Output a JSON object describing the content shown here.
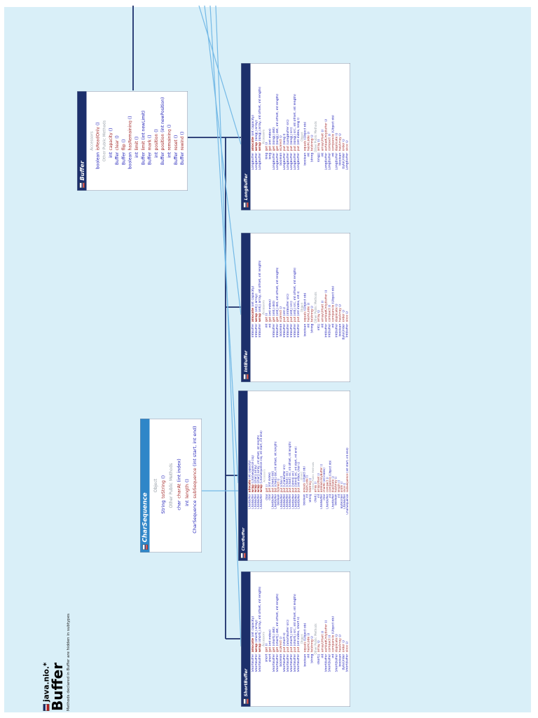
{
  "title": {
    "package": "java.nio.*",
    "name": "Buffer",
    "note": "Methods declared in Buffer are hidden in subtypes"
  },
  "colors": {
    "page_bg": "#d9eff8",
    "class_header": "#1c2f6b",
    "interface_header": "#2f86c8",
    "type_color": "#2020b8",
    "method_name_color": "#a42b2b",
    "section_label_color": "#98a0a8",
    "class_line": "#1c2f6b",
    "interface_line": "#74b9e6"
  },
  "classes": [
    {
      "id": "buffer",
      "title": "Buffer",
      "kind": "class",
      "rows": [
        {
          "t": "sec",
          "label": "Accessors"
        },
        {
          "t": "m",
          "ret": "boolean",
          "name": "isReadOnly",
          "params": "()"
        },
        {
          "t": "sec",
          "label": "Other Public Methods"
        },
        {
          "t": "m",
          "ret": "int",
          "name": "capacity",
          "params": "()"
        },
        {
          "t": "m",
          "ret": "Buffer",
          "name": "clear",
          "params": "()"
        },
        {
          "t": "m",
          "ret": "Buffer",
          "name": "flip",
          "params": "()"
        },
        {
          "t": "m",
          "ret": "boolean",
          "name": "hasRemaining",
          "params": "()"
        },
        {
          "t": "m",
          "ret": "int",
          "name": "limit",
          "params": "()"
        },
        {
          "t": "m",
          "ret": "Buffer",
          "name": "limit",
          "params": "(int newLimit)"
        },
        {
          "t": "m",
          "ret": "Buffer",
          "name": "mark",
          "params": "()"
        },
        {
          "t": "m",
          "ret": "int",
          "name": "position",
          "params": "()"
        },
        {
          "t": "m",
          "ret": "Buffer",
          "name": "position",
          "params": "(int newPosition)"
        },
        {
          "t": "m",
          "ret": "int",
          "name": "remaining",
          "params": "()"
        },
        {
          "t": "m",
          "ret": "Buffer",
          "name": "reset",
          "params": "()"
        },
        {
          "t": "m",
          "ret": "Buffer",
          "name": "rewind",
          "params": "()"
        }
      ]
    },
    {
      "id": "charsequence",
      "title": "CharSequence",
      "kind": "interface",
      "rows": [
        {
          "t": "sec",
          "label": "Object"
        },
        {
          "t": "m",
          "ret": "String",
          "name": "toString",
          "params": "()"
        },
        {
          "t": "sec",
          "label": "Other Public Methods"
        },
        {
          "t": "m",
          "ret": "char",
          "name": "charAt",
          "params": "(int index)"
        },
        {
          "t": "m",
          "ret": "int",
          "name": "length",
          "params": "()"
        },
        {
          "t": "m",
          "ret": "CharSequence",
          "name": "subSequence",
          "params": "(int start,  int end)"
        }
      ]
    },
    {
      "id": "longbuffer",
      "title": "LongBuffer",
      "kind": "class",
      "rows": [
        {
          "t": "m",
          "ret": "LongBuffer",
          "name": "allocate",
          "params": "(int capacity)",
          "b": true
        },
        {
          "t": "m",
          "ret": "LongBuffer",
          "name": "wrap",
          "params": "(long[] array)",
          "b": true
        },
        {
          "t": "m",
          "ret": "LongBuffer",
          "name": "wrap",
          "params": "(long[] array,  int offset,  int length)",
          "b": true
        },
        {
          "t": "sec",
          "label": "Accessors"
        },
        {
          "t": "m",
          "ret": "long",
          "name": "get",
          "params": "()"
        },
        {
          "t": "m",
          "ret": "long",
          "name": "get",
          "params": "(int index)"
        },
        {
          "t": "m",
          "ret": "LongBuffer",
          "name": "get",
          "params": "(long[] dst)"
        },
        {
          "t": "m",
          "ret": "LongBuffer",
          "name": "get",
          "params": "(long[] dst,  int offset,  int length)"
        },
        {
          "t": "m",
          "ret": "boolean",
          "name": "isDirect",
          "params": "()"
        },
        {
          "t": "m",
          "ret": "LongBuffer",
          "name": "put",
          "params": "(long l)"
        },
        {
          "t": "m",
          "ret": "LongBuffer",
          "name": "put",
          "params": "(LongBuffer src)"
        },
        {
          "t": "m",
          "ret": "LongBuffer",
          "name": "put",
          "params": "(long[] src)"
        },
        {
          "t": "m",
          "ret": "LongBuffer",
          "name": "put",
          "params": "(long[] src,  int offset,  int length)"
        },
        {
          "t": "m",
          "ret": "LongBuffer",
          "name": "put",
          "params": "(int index,  long l)"
        },
        {
          "t": "sec",
          "label": "Object"
        },
        {
          "t": "m",
          "ret": "boolean",
          "name": "equals",
          "params": "(Object ob)"
        },
        {
          "t": "m",
          "ret": "int",
          "name": "hashCode",
          "params": "()"
        },
        {
          "t": "m",
          "ret": "String",
          "name": "toString",
          "params": "()"
        },
        {
          "t": "sec",
          "label": "Other Public Methods"
        },
        {
          "t": "m",
          "ret": "long[]",
          "name": "array",
          "params": "()"
        },
        {
          "t": "m",
          "ret": "int",
          "name": "arrayOffset",
          "params": "()"
        },
        {
          "t": "m",
          "ret": "LongBuffer",
          "name": "asReadOnlyBuffer",
          "params": "()"
        },
        {
          "t": "m",
          "ret": "LongBuffer",
          "name": "compact",
          "params": "()"
        },
        {
          "t": "m",
          "ret": "int",
          "name": "compareTo",
          "params": "(Object ob)"
        },
        {
          "t": "m",
          "ret": "LongBuffer",
          "name": "duplicate",
          "params": "()"
        },
        {
          "t": "m",
          "ret": "boolean",
          "name": "hasArray",
          "params": "()"
        },
        {
          "t": "m",
          "ret": "ByteOrder",
          "name": "order",
          "params": "()"
        },
        {
          "t": "m",
          "ret": "LongBuffer",
          "name": "slice",
          "params": "()"
        }
      ]
    },
    {
      "id": "intbuffer",
      "title": "IntBuffer",
      "kind": "class",
      "rows": [
        {
          "t": "m",
          "ret": "IntBuffer",
          "name": "allocate",
          "params": "(int capacity)",
          "b": true
        },
        {
          "t": "m",
          "ret": "IntBuffer",
          "name": "wrap",
          "params": "(int[] array)",
          "b": true
        },
        {
          "t": "m",
          "ret": "IntBuffer",
          "name": "wrap",
          "params": "(int[] array,  int offset,  int length)",
          "b": true
        },
        {
          "t": "sec",
          "label": "Accessors"
        },
        {
          "t": "m",
          "ret": "int",
          "name": "get",
          "params": "()"
        },
        {
          "t": "m",
          "ret": "int",
          "name": "get",
          "params": "(int index)"
        },
        {
          "t": "m",
          "ret": "IntBuffer",
          "name": "get",
          "params": "(int[] dst)"
        },
        {
          "t": "m",
          "ret": "IntBuffer",
          "name": "get",
          "params": "(int[] dst,  int offset,  int length)"
        },
        {
          "t": "m",
          "ret": "boolean",
          "name": "isDirect",
          "params": "()"
        },
        {
          "t": "m",
          "ret": "IntBuffer",
          "name": "put",
          "params": "(int i)"
        },
        {
          "t": "m",
          "ret": "IntBuffer",
          "name": "put",
          "params": "(IntBuffer src)"
        },
        {
          "t": "m",
          "ret": "IntBuffer",
          "name": "put",
          "params": "(int[] src)"
        },
        {
          "t": "m",
          "ret": "IntBuffer",
          "name": "put",
          "params": "(int[] src,  int offset,  int length)"
        },
        {
          "t": "m",
          "ret": "IntBuffer",
          "name": "put",
          "params": "(int index,  int i)"
        },
        {
          "t": "sec",
          "label": "Object"
        },
        {
          "t": "m",
          "ret": "boolean",
          "name": "equals",
          "params": "(Object ob)"
        },
        {
          "t": "m",
          "ret": "int",
          "name": "hashCode",
          "params": "()"
        },
        {
          "t": "m",
          "ret": "String",
          "name": "toString",
          "params": "()"
        },
        {
          "t": "sec",
          "label": "Other Public Methods"
        },
        {
          "t": "m",
          "ret": "int[]",
          "name": "array",
          "params": "()"
        },
        {
          "t": "m",
          "ret": "int",
          "name": "arrayOffset",
          "params": "()"
        },
        {
          "t": "m",
          "ret": "IntBuffer",
          "name": "asReadOnlyBuffer",
          "params": "()"
        },
        {
          "t": "m",
          "ret": "IntBuffer",
          "name": "compact",
          "params": "()"
        },
        {
          "t": "m",
          "ret": "int",
          "name": "compareTo",
          "params": "(Object ob)"
        },
        {
          "t": "m",
          "ret": "IntBuffer",
          "name": "duplicate",
          "params": "()"
        },
        {
          "t": "m",
          "ret": "boolean",
          "name": "hasArray",
          "params": "()"
        },
        {
          "t": "m",
          "ret": "ByteOrder",
          "name": "order",
          "params": "()"
        },
        {
          "t": "m",
          "ret": "IntBuffer",
          "name": "slice",
          "params": "()"
        }
      ]
    },
    {
      "id": "charbuffer",
      "title": "CharBuffer",
      "kind": "class",
      "rows": [
        {
          "t": "m",
          "ret": "CharBuffer",
          "name": "allocate",
          "params": "(int capacity)",
          "b": true
        },
        {
          "t": "m",
          "ret": "CharBuffer",
          "name": "wrap",
          "params": "(CharSequence csq)",
          "b": true
        },
        {
          "t": "m",
          "ret": "CharBuffer",
          "name": "wrap",
          "params": "(char[] array)",
          "b": true
        },
        {
          "t": "m",
          "ret": "CharBuffer",
          "name": "wrap",
          "params": "(char[] array,  int offset,  int length)",
          "b": true
        },
        {
          "t": "m",
          "ret": "CharBuffer",
          "name": "wrap",
          "params": "(CharSequence csq,  int start,  int end)",
          "b": true
        },
        {
          "t": "sec",
          "label": "Accessors"
        },
        {
          "t": "m",
          "ret": "char",
          "name": "get",
          "params": "()"
        },
        {
          "t": "m",
          "ret": "char",
          "name": "get",
          "params": "(int index)"
        },
        {
          "t": "m",
          "ret": "CharBuffer",
          "name": "get",
          "params": "(char[] dst)"
        },
        {
          "t": "m",
          "ret": "CharBuffer",
          "name": "get",
          "params": "(char[] dst,  int offset,  int length)"
        },
        {
          "t": "m",
          "ret": "boolean",
          "name": "isDirect",
          "params": "()"
        },
        {
          "t": "m",
          "ret": "CharBuffer",
          "name": "put",
          "params": "(char c)"
        },
        {
          "t": "m",
          "ret": "CharBuffer",
          "name": "put",
          "params": "(CharBuffer src)"
        },
        {
          "t": "m",
          "ret": "CharBuffer",
          "name": "put",
          "params": "(char[] src)"
        },
        {
          "t": "m",
          "ret": "CharBuffer",
          "name": "put",
          "params": "(char[] src,  int offset,  int length)"
        },
        {
          "t": "m",
          "ret": "CharBuffer",
          "name": "put",
          "params": "(String src)"
        },
        {
          "t": "m",
          "ret": "CharBuffer",
          "name": "put",
          "params": "(String src,  int start,  int end)"
        },
        {
          "t": "m",
          "ret": "CharBuffer",
          "name": "put",
          "params": "(int index,  char c)"
        },
        {
          "t": "sec",
          "label": "Object"
        },
        {
          "t": "m",
          "ret": "boolean",
          "name": "equals",
          "params": "(Object ob)"
        },
        {
          "t": "m",
          "ret": "int",
          "name": "hashCode",
          "params": "()"
        },
        {
          "t": "m",
          "ret": "String",
          "name": "toString",
          "params": "()"
        },
        {
          "t": "sec",
          "label": "Other Public Methods"
        },
        {
          "t": "m",
          "ret": "char[]",
          "name": "array",
          "params": "()"
        },
        {
          "t": "m",
          "ret": "int",
          "name": "arrayOffset",
          "params": "()"
        },
        {
          "t": "m",
          "ret": "CharBuffer",
          "name": "asReadOnlyBuffer",
          "params": "()"
        },
        {
          "t": "m",
          "ret": "char",
          "name": "charAt",
          "params": "(int index)"
        },
        {
          "t": "m",
          "ret": "CharBuffer",
          "name": "compact",
          "params": "()"
        },
        {
          "t": "m",
          "ret": "int",
          "name": "compareTo",
          "params": "(Object ob)"
        },
        {
          "t": "m",
          "ret": "CharBuffer",
          "name": "duplicate",
          "params": "()"
        },
        {
          "t": "m",
          "ret": "boolean",
          "name": "hasArray",
          "params": "()"
        },
        {
          "t": "m",
          "ret": "int",
          "name": "length",
          "params": "()"
        },
        {
          "t": "m",
          "ret": "ByteOrder",
          "name": "order",
          "params": "()"
        },
        {
          "t": "m",
          "ret": "CharBuffer",
          "name": "slice",
          "params": "()"
        },
        {
          "t": "m",
          "ret": "CharSequence",
          "name": "subSequence",
          "params": "(int start,  int end)"
        }
      ]
    },
    {
      "id": "shortbuffer",
      "title": "ShortBuffer",
      "kind": "class",
      "rows": [
        {
          "t": "m",
          "ret": "ShortBuffer",
          "name": "allocate",
          "params": "(int capacity)",
          "b": true
        },
        {
          "t": "m",
          "ret": "ShortBuffer",
          "name": "wrap",
          "params": "(short[] array)",
          "b": true
        },
        {
          "t": "m",
          "ret": "ShortBuffer",
          "name": "wrap",
          "params": "(short[] array,  int offset,  int length)",
          "b": true
        },
        {
          "t": "sec",
          "label": "Accessors"
        },
        {
          "t": "m",
          "ret": "short",
          "name": "get",
          "params": "()"
        },
        {
          "t": "m",
          "ret": "short",
          "name": "get",
          "params": "(int index)"
        },
        {
          "t": "m",
          "ret": "ShortBuffer",
          "name": "get",
          "params": "(short[] dst)"
        },
        {
          "t": "m",
          "ret": "ShortBuffer",
          "name": "get",
          "params": "(short[] dst,  int offset,  int length)"
        },
        {
          "t": "m",
          "ret": "boolean",
          "name": "isDirect",
          "params": "()"
        },
        {
          "t": "m",
          "ret": "ShortBuffer",
          "name": "put",
          "params": "(short s)"
        },
        {
          "t": "m",
          "ret": "ShortBuffer",
          "name": "put",
          "params": "(ShortBuffer src)"
        },
        {
          "t": "m",
          "ret": "ShortBuffer",
          "name": "put",
          "params": "(short[] src)"
        },
        {
          "t": "m",
          "ret": "ShortBuffer",
          "name": "put",
          "params": "(short[] src,  int offset,  int length)"
        },
        {
          "t": "m",
          "ret": "ShortBuffer",
          "name": "put",
          "params": "(int index,  short s)"
        },
        {
          "t": "sec",
          "label": "Object"
        },
        {
          "t": "m",
          "ret": "boolean",
          "name": "equals",
          "params": "(Object ob)"
        },
        {
          "t": "m",
          "ret": "int",
          "name": "hashCode",
          "params": "()"
        },
        {
          "t": "m",
          "ret": "String",
          "name": "toString",
          "params": "()"
        },
        {
          "t": "sec",
          "label": "Other Public Methods"
        },
        {
          "t": "m",
          "ret": "short[]",
          "name": "array",
          "params": "()"
        },
        {
          "t": "m",
          "ret": "int",
          "name": "arrayOffset",
          "params": "()"
        },
        {
          "t": "m",
          "ret": "ShortBuffer",
          "name": "asReadOnlyBuffer",
          "params": "()"
        },
        {
          "t": "m",
          "ret": "ShortBuffer",
          "name": "compact",
          "params": "()"
        },
        {
          "t": "m",
          "ret": "int",
          "name": "compareTo",
          "params": "(Object ob)"
        },
        {
          "t": "m",
          "ret": "ShortBuffer",
          "name": "duplicate",
          "params": "()"
        },
        {
          "t": "m",
          "ret": "boolean",
          "name": "hasArray",
          "params": "()"
        },
        {
          "t": "m",
          "ret": "ByteOrder",
          "name": "order",
          "params": "()"
        },
        {
          "t": "m",
          "ret": "ShortBuffer",
          "name": "slice",
          "params": "()"
        }
      ]
    }
  ]
}
